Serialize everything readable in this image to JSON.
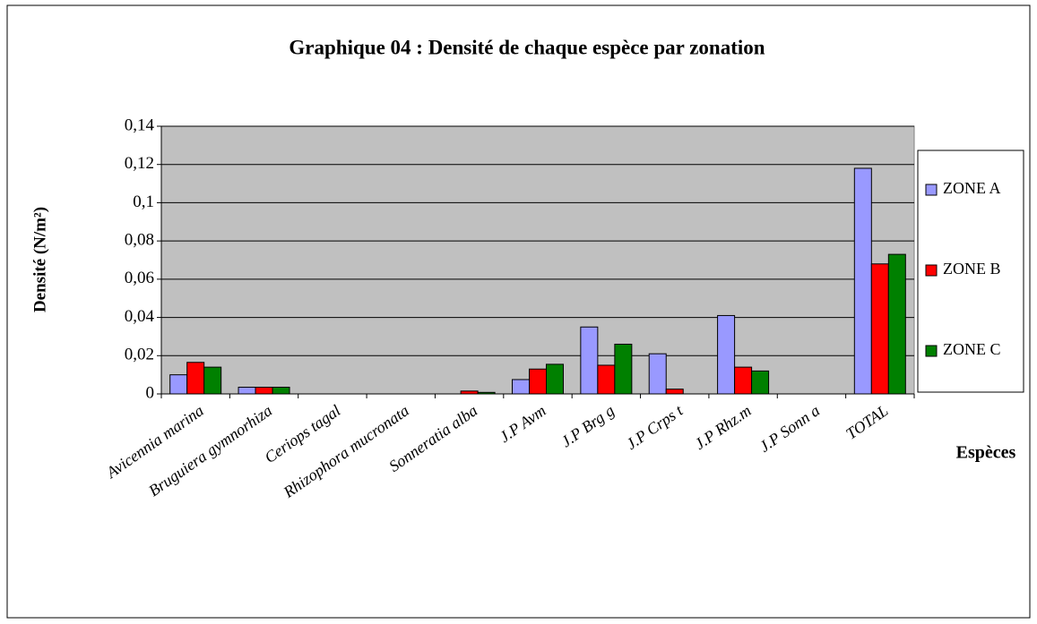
{
  "chart_data": {
    "type": "bar",
    "title": "Graphique 04 : Densité de chaque espèce par zonation",
    "y_label": "Densité (N/m²)",
    "x_label": "Espèces",
    "categories": [
      "Avicennia marina",
      "Bruguiera gymnorhiza",
      "Ceriops tagal",
      "Rhizophora mucronata",
      "Sonneratia alba",
      "J.P Avm",
      "J.P Brg g",
      "J.P Crps t",
      "J.P Rhz.m",
      "J.P Sonn a",
      "TOTAL"
    ],
    "series": [
      {
        "name": "ZONE A",
        "color": "#9999ff",
        "values": [
          0.01,
          0.0035,
          0,
          0,
          0,
          0.0075,
          0.035,
          0.021,
          0.041,
          0,
          0.118
        ]
      },
      {
        "name": "ZONE B",
        "color": "#ff0000",
        "values": [
          0.0165,
          0.0035,
          0,
          0,
          0.0015,
          0.013,
          0.015,
          0.0025,
          0.014,
          0,
          0.068
        ]
      },
      {
        "name": "ZONE C",
        "color": "#008000",
        "values": [
          0.014,
          0.0035,
          0,
          0,
          0.0008,
          0.0155,
          0.026,
          0,
          0.012,
          0,
          0.073
        ]
      }
    ],
    "ylim": [
      0,
      0.14
    ],
    "yticks": [
      0,
      {
        "value": 0.02,
        "label": "0,02"
      },
      {
        "value": 0.04,
        "label": "0,04"
      },
      {
        "value": 0.06,
        "label": "0,06"
      },
      {
        "value": 0.08,
        "label": "0,08"
      },
      {
        "value": 0.1,
        "label": "0,1"
      },
      {
        "value": 0.12,
        "label": "0,12"
      },
      {
        "value": 0.14,
        "label": "0,14"
      }
    ],
    "grid": true,
    "legend": "right"
  }
}
